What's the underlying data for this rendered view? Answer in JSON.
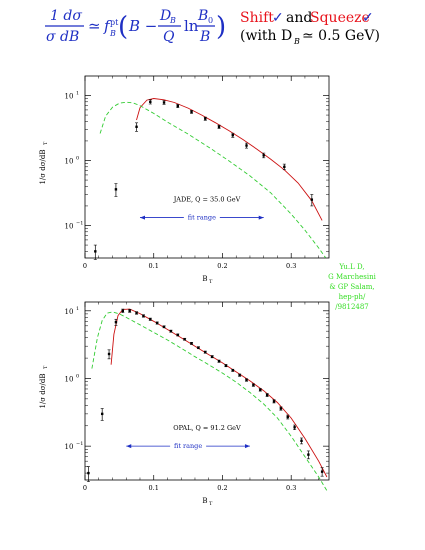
{
  "header": {
    "formula": {
      "lhs_num": "1 dσ",
      "lhs_den": "σ dB",
      "approx": "≃",
      "f_symbol": "f",
      "f_sup": "pt",
      "f_sub": "B",
      "open": "(",
      "b_term": "B −",
      "db": "D",
      "db_sub": "B",
      "q": "Q",
      "ln": "ln",
      "b0": "B",
      "b0_sub": "0",
      "b_den": "B",
      "close": ")"
    },
    "shift_label": "Shift",
    "check": "✓",
    "and_label": "and",
    "squeeze_label": "Squeeze",
    "note": "(with D",
    "note_sub": "B",
    "note_rest": "≃ 0.5 GeV)",
    "colors": {
      "formula": "#1e2fc4",
      "shift": "#e8121b",
      "squeeze": "#e8121b",
      "check": "#1e2fc4"
    }
  },
  "side_note": {
    "lines": [
      "Yu.L D,",
      "G Marchesini",
      "& GP Salam,",
      "hep-ph/",
      "/9812487"
    ],
    "color": "#33dd22"
  },
  "chart_data": [
    {
      "type": "line",
      "experiment_label": "JADE,  Q =   35.0 GeV",
      "fit_range_label": "fit range",
      "fit_range": [
        0.08,
        0.26
      ],
      "xlabel": "B",
      "xlabel_sub": "T",
      "ylabel": "1/σ dσ/dB",
      "ylabel_sub": "T",
      "xlim": [
        0,
        0.355
      ],
      "y_log_decades": [
        -1.5,
        1.3
      ],
      "log_scale_y": true,
      "x_ticks": [
        {
          "v": 0,
          "label": "0"
        },
        {
          "v": 0.1,
          "label": "0.1"
        },
        {
          "v": 0.2,
          "label": "0.2"
        },
        {
          "v": 0.3,
          "label": "0.3"
        }
      ],
      "y_ticks": [
        {
          "v": 1,
          "label": "10",
          "sup": "1"
        },
        {
          "v": 0,
          "label": "10",
          "sup": "0"
        },
        {
          "v": -1,
          "label": "10",
          "sup": "−1"
        }
      ],
      "data": {
        "x": [
          0.015,
          0.045,
          0.075,
          0.095,
          0.115,
          0.135,
          0.155,
          0.175,
          0.195,
          0.215,
          0.235,
          0.26,
          0.29,
          0.33
        ],
        "y": [
          0.04,
          0.36,
          3.3,
          8.0,
          7.8,
          6.9,
          5.6,
          4.4,
          3.3,
          2.45,
          1.7,
          1.2,
          0.8,
          0.25
        ],
        "err": [
          0.01,
          0.08,
          0.5,
          0.6,
          0.5,
          0.4,
          0.3,
          0.25,
          0.2,
          0.18,
          0.15,
          0.1,
          0.08,
          0.05
        ]
      },
      "series": [
        {
          "name": "",
          "style": "solid",
          "color": "#cc1111",
          "x": [
            0.075,
            0.08,
            0.09,
            0.1,
            0.115,
            0.13,
            0.15,
            0.17,
            0.19,
            0.21,
            0.23,
            0.25,
            0.27,
            0.29,
            0.31,
            0.33,
            0.345
          ],
          "y": [
            4.2,
            6.5,
            8.5,
            9.0,
            8.6,
            7.8,
            6.4,
            5.0,
            3.8,
            2.85,
            2.1,
            1.5,
            1.05,
            0.72,
            0.45,
            0.24,
            0.12
          ]
        },
        {
          "name": "",
          "style": "dashed",
          "color": "#33cc33",
          "x": [
            0.022,
            0.03,
            0.04,
            0.05,
            0.06,
            0.07,
            0.08,
            0.1,
            0.12,
            0.15,
            0.18,
            0.21,
            0.24,
            0.27,
            0.3,
            0.32,
            0.34,
            0.35
          ],
          "y": [
            2.6,
            4.8,
            6.6,
            7.6,
            7.9,
            7.7,
            7.0,
            5.3,
            3.9,
            2.55,
            1.6,
            0.98,
            0.58,
            0.32,
            0.15,
            0.085,
            0.045,
            0.032
          ]
        }
      ]
    },
    {
      "type": "line",
      "experiment_label": "OPAL,  Q =   91.2 GeV",
      "fit_range_label": "fit range",
      "fit_range": [
        0.06,
        0.24
      ],
      "xlabel": "B",
      "xlabel_sub": "T",
      "ylabel": "1/σ dσ/dB",
      "ylabel_sub": "T",
      "xlim": [
        0,
        0.355
      ],
      "y_log_decades": [
        -1.5,
        1.13
      ],
      "log_scale_y": true,
      "x_ticks": [
        {
          "v": 0,
          "label": "0"
        },
        {
          "v": 0.1,
          "label": "0.1"
        },
        {
          "v": 0.2,
          "label": "0.2"
        },
        {
          "v": 0.3,
          "label": "0.3"
        }
      ],
      "y_ticks": [
        {
          "v": 1,
          "label": "10",
          "sup": "1"
        },
        {
          "v": 0,
          "label": "10",
          "sup": "0"
        },
        {
          "v": -1,
          "label": "10",
          "sup": "−1"
        }
      ],
      "data": {
        "x": [
          0.005,
          0.025,
          0.035,
          0.045,
          0.055,
          0.065,
          0.075,
          0.085,
          0.095,
          0.105,
          0.115,
          0.125,
          0.135,
          0.145,
          0.155,
          0.165,
          0.175,
          0.185,
          0.195,
          0.205,
          0.215,
          0.225,
          0.235,
          0.245,
          0.255,
          0.265,
          0.275,
          0.285,
          0.295,
          0.305,
          0.315,
          0.325,
          0.345
        ],
        "y": [
          0.04,
          0.3,
          2.3,
          6.8,
          10.0,
          10.0,
          9.3,
          8.4,
          7.5,
          6.6,
          5.8,
          5.0,
          4.4,
          3.8,
          3.3,
          2.85,
          2.45,
          2.1,
          1.8,
          1.55,
          1.32,
          1.12,
          0.95,
          0.8,
          0.68,
          0.57,
          0.46,
          0.36,
          0.27,
          0.19,
          0.12,
          0.075,
          0.042
        ],
        "err": [
          0.01,
          0.06,
          0.35,
          0.7,
          0.6,
          0.5,
          0.4,
          0.35,
          0.3,
          0.25,
          0.2,
          0.18,
          0.15,
          0.13,
          0.12,
          0.1,
          0.09,
          0.08,
          0.07,
          0.06,
          0.05,
          0.045,
          0.04,
          0.035,
          0.03,
          0.03,
          0.025,
          0.02,
          0.018,
          0.015,
          0.012,
          0.01,
          0.006
        ]
      },
      "series": [
        {
          "name": "",
          "style": "solid",
          "color": "#cc1111",
          "x": [
            0.038,
            0.042,
            0.048,
            0.055,
            0.065,
            0.08,
            0.1,
            0.12,
            0.14,
            0.16,
            0.18,
            0.2,
            0.22,
            0.24,
            0.26,
            0.28,
            0.3,
            0.32,
            0.34,
            0.352
          ],
          "y": [
            1.6,
            4.5,
            8.5,
            10.5,
            10.6,
            9.1,
            7.0,
            5.3,
            4.0,
            3.0,
            2.25,
            1.7,
            1.25,
            0.92,
            0.66,
            0.44,
            0.26,
            0.13,
            0.06,
            0.035
          ]
        },
        {
          "name": "",
          "style": "dashed",
          "color": "#33cc33",
          "x": [
            0.01,
            0.018,
            0.025,
            0.032,
            0.04,
            0.05,
            0.06,
            0.08,
            0.1,
            0.12,
            0.14,
            0.16,
            0.18,
            0.2,
            0.22,
            0.24,
            0.26,
            0.28,
            0.3,
            0.32,
            0.34,
            0.352
          ],
          "y": [
            1.4,
            4.0,
            7.2,
            9.2,
            9.6,
            9.0,
            8.0,
            6.2,
            4.8,
            3.7,
            2.8,
            2.1,
            1.6,
            1.2,
            0.88,
            0.62,
            0.42,
            0.26,
            0.14,
            0.07,
            0.035,
            0.022
          ]
        }
      ]
    }
  ]
}
